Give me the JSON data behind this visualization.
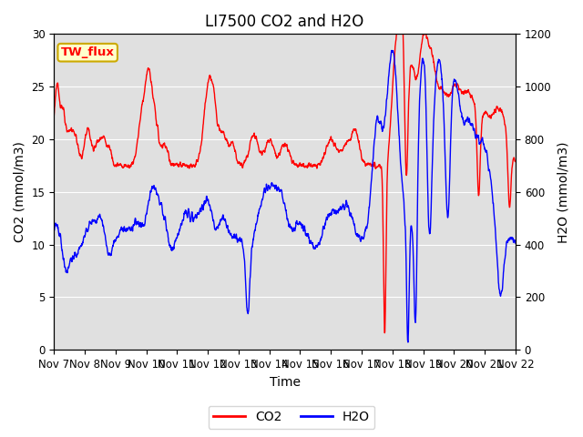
{
  "title": "LI7500 CO2 and H2O",
  "xlabel": "Time",
  "ylabel_left": "CO2 (mmol/m3)",
  "ylabel_right": "H2O (mmol/m3)",
  "xlim_days": [
    0,
    15
  ],
  "ylim_left": [
    0,
    30
  ],
  "ylim_right": [
    0,
    1200
  ],
  "yticks_left": [
    0,
    5,
    10,
    15,
    20,
    25,
    30
  ],
  "yticks_right": [
    0,
    200,
    400,
    600,
    800,
    1000,
    1200
  ],
  "xtick_labels": [
    "Nov 7",
    "Nov 8",
    "Nov 9",
    "Nov 10",
    "Nov 11",
    "Nov 12",
    "Nov 13",
    "Nov 14",
    "Nov 15",
    "Nov 16",
    "Nov 17",
    "Nov 18",
    "Nov 19",
    "Nov 20",
    "Nov 21",
    "Nov 22"
  ],
  "color_co2": "#FF0000",
  "color_h2o": "#0000FF",
  "background_color": "#E0E0E0",
  "legend_label_co2": "CO2",
  "legend_label_h2o": "H2O",
  "site_label": "TW_flux",
  "site_label_bg": "#FFFFCC",
  "site_label_border": "#CCAA00",
  "title_fontsize": 12,
  "axis_label_fontsize": 10,
  "tick_fontsize": 8.5,
  "linewidth": 1.0
}
